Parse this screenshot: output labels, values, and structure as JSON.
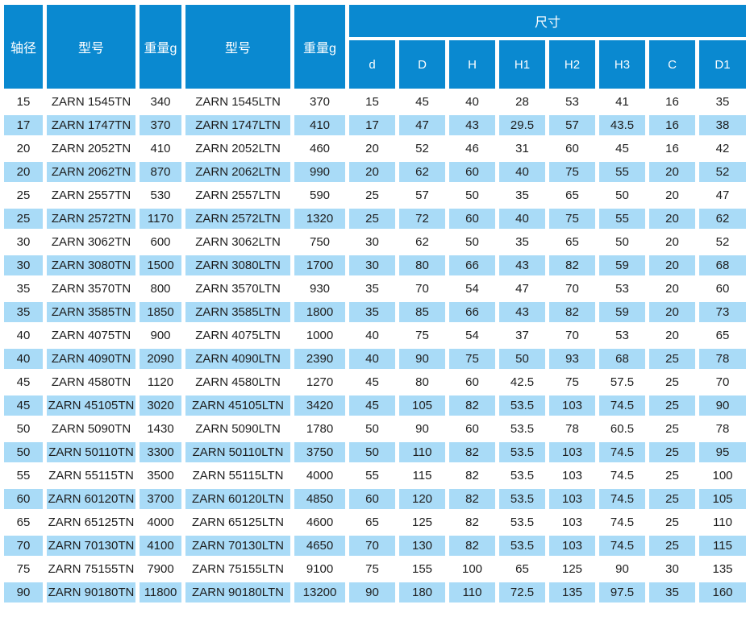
{
  "colors": {
    "header_bg": "#0a89d0",
    "header_text": "#ffffff",
    "row_alt_bg": "#a9dbf7",
    "row_bg": "#ffffff",
    "text": "#1d1d1d"
  },
  "table": {
    "headers": {
      "shaft_diameter": "轴径",
      "model_tn": "型号",
      "weight_tn": "重量g",
      "model_ltn": "型号",
      "weight_ltn": "重量g",
      "dimensions_group": "尺寸",
      "dimension_columns": [
        "d",
        "D",
        "H",
        "H1",
        "H2",
        "H3",
        "C",
        "D1"
      ]
    },
    "rows": [
      [
        "15",
        "ZARN 1545TN",
        "340",
        "ZARN 1545LTN",
        "370",
        "15",
        "45",
        "40",
        "28",
        "53",
        "41",
        "16",
        "35"
      ],
      [
        "17",
        "ZARN 1747TN",
        "370",
        "ZARN 1747LTN",
        "410",
        "17",
        "47",
        "43",
        "29.5",
        "57",
        "43.5",
        "16",
        "38"
      ],
      [
        "20",
        "ZARN 2052TN",
        "410",
        "ZARN 2052LTN",
        "460",
        "20",
        "52",
        "46",
        "31",
        "60",
        "45",
        "16",
        "42"
      ],
      [
        "20",
        "ZARN 2062TN",
        "870",
        "ZARN 2062LTN",
        "990",
        "20",
        "62",
        "60",
        "40",
        "75",
        "55",
        "20",
        "52"
      ],
      [
        "25",
        "ZARN 2557TN",
        "530",
        "ZARN 2557LTN",
        "590",
        "25",
        "57",
        "50",
        "35",
        "65",
        "50",
        "20",
        "47"
      ],
      [
        "25",
        "ZARN 2572TN",
        "1170",
        "ZARN 2572LTN",
        "1320",
        "25",
        "72",
        "60",
        "40",
        "75",
        "55",
        "20",
        "62"
      ],
      [
        "30",
        "ZARN 3062TN",
        "600",
        "ZARN 3062LTN",
        "750",
        "30",
        "62",
        "50",
        "35",
        "65",
        "50",
        "20",
        "52"
      ],
      [
        "30",
        "ZARN 3080TN",
        "1500",
        "ZARN 3080LTN",
        "1700",
        "30",
        "80",
        "66",
        "43",
        "82",
        "59",
        "20",
        "68"
      ],
      [
        "35",
        "ZARN 3570TN",
        "800",
        "ZARN 3570LTN",
        "930",
        "35",
        "70",
        "54",
        "47",
        "70",
        "53",
        "20",
        "60"
      ],
      [
        "35",
        "ZARN 3585TN",
        "1850",
        "ZARN 3585LTN",
        "1800",
        "35",
        "85",
        "66",
        "43",
        "82",
        "59",
        "20",
        "73"
      ],
      [
        "40",
        "ZARN 4075TN",
        "900",
        "ZARN 4075LTN",
        "1000",
        "40",
        "75",
        "54",
        "37",
        "70",
        "53",
        "20",
        "65"
      ],
      [
        "40",
        "ZARN 4090TN",
        "2090",
        "ZARN 4090LTN",
        "2390",
        "40",
        "90",
        "75",
        "50",
        "93",
        "68",
        "25",
        "78"
      ],
      [
        "45",
        "ZARN 4580TN",
        "1120",
        "ZARN 4580LTN",
        "1270",
        "45",
        "80",
        "60",
        "42.5",
        "75",
        "57.5",
        "25",
        "70"
      ],
      [
        "45",
        "ZARN 45105TN",
        "3020",
        "ZARN 45105LTN",
        "3420",
        "45",
        "105",
        "82",
        "53.5",
        "103",
        "74.5",
        "25",
        "90"
      ],
      [
        "50",
        "ZARN 5090TN",
        "1430",
        "ZARN 5090LTN",
        "1780",
        "50",
        "90",
        "60",
        "53.5",
        "78",
        "60.5",
        "25",
        "78"
      ],
      [
        "50",
        "ZARN 50110TN",
        "3300",
        "ZARN 50110LTN",
        "3750",
        "50",
        "110",
        "82",
        "53.5",
        "103",
        "74.5",
        "25",
        "95"
      ],
      [
        "55",
        "ZARN 55115TN",
        "3500",
        "ZARN 55115LTN",
        "4000",
        "55",
        "115",
        "82",
        "53.5",
        "103",
        "74.5",
        "25",
        "100"
      ],
      [
        "60",
        "ZARN 60120TN",
        "3700",
        "ZARN 60120LTN",
        "4850",
        "60",
        "120",
        "82",
        "53.5",
        "103",
        "74.5",
        "25",
        "105"
      ],
      [
        "65",
        "ZARN 65125TN",
        "4000",
        "ZARN 65125LTN",
        "4600",
        "65",
        "125",
        "82",
        "53.5",
        "103",
        "74.5",
        "25",
        "110"
      ],
      [
        "70",
        "ZARN 70130TN",
        "4100",
        "ZARN 70130LTN",
        "4650",
        "70",
        "130",
        "82",
        "53.5",
        "103",
        "74.5",
        "25",
        "115"
      ],
      [
        "75",
        "ZARN 75155TN",
        "7900",
        "ZARN 75155LTN",
        "9100",
        "75",
        "155",
        "100",
        "65",
        "125",
        "90",
        "30",
        "135"
      ],
      [
        "90",
        "ZARN 90180TN",
        "11800",
        "ZARN 90180LTN",
        "13200",
        "90",
        "180",
        "110",
        "72.5",
        "135",
        "97.5",
        "35",
        "160"
      ]
    ],
    "cell_names": [
      "shaft-diameter-cell",
      "model-tn-cell",
      "weight-tn-cell",
      "model-ltn-cell",
      "weight-ltn-cell",
      "dim-d-cell",
      "dim-D-cell",
      "dim-H-cell",
      "dim-H1-cell",
      "dim-H2-cell",
      "dim-H3-cell",
      "dim-C-cell",
      "dim-D1-cell"
    ]
  }
}
